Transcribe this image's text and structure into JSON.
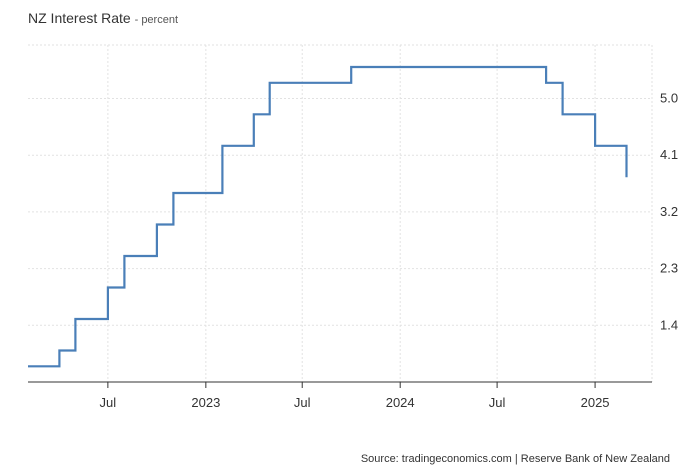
{
  "header": {
    "title": "NZ Interest Rate",
    "subtitle": "- percent"
  },
  "footer": {
    "source": "Source: tradingeconomics.com | Reserve Bank of New Zealand"
  },
  "colors": {
    "line": "#4a7fb8",
    "grid": "#e2e2e2",
    "axis": "#333333"
  },
  "chart_data": {
    "type": "line",
    "step": true,
    "x": [
      "2022-02",
      "2022-04",
      "2022-05",
      "2022-07",
      "2022-08",
      "2022-10",
      "2022-11",
      "2023-02",
      "2023-04",
      "2023-05",
      "2023-10",
      "2024-08",
      "2024-10",
      "2024-11",
      "2025-01",
      "2025-03"
    ],
    "series": [
      {
        "values": [
          0.75,
          1.0,
          1.5,
          2.0,
          2.5,
          3.0,
          3.5,
          4.25,
          4.75,
          5.25,
          5.5,
          5.5,
          5.25,
          4.75,
          4.25,
          3.75
        ]
      }
    ],
    "x_ticks": [
      "Jul",
      "2023",
      "Jul",
      "2024",
      "Jul",
      "2025"
    ],
    "y_ticks": [
      "1.4",
      "2.3",
      "3.2",
      "4.1",
      "5.0"
    ],
    "ylim": [
      0.5,
      5.85
    ],
    "y_axis_side": "right",
    "grid": true
  }
}
